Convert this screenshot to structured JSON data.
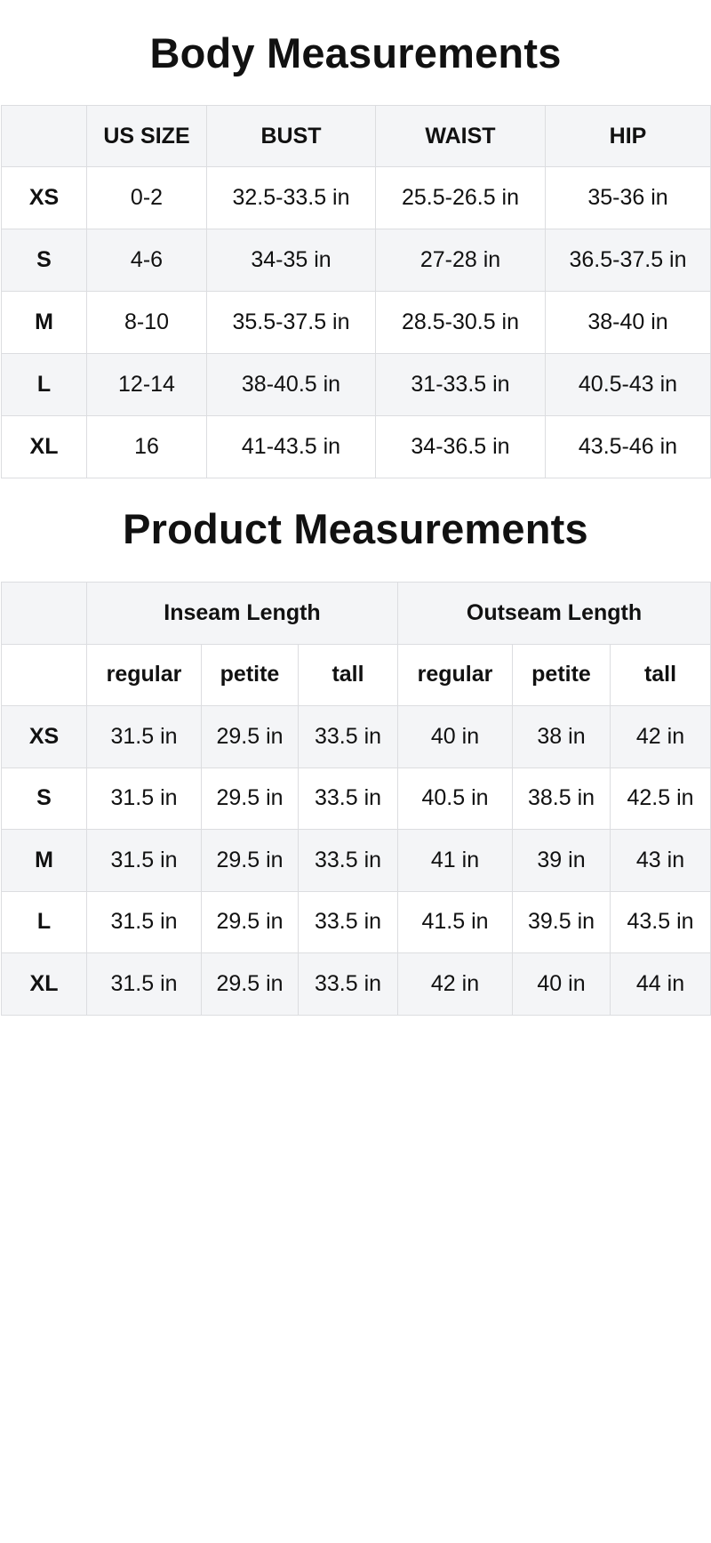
{
  "body_measurements": {
    "title": "Body Measurements",
    "headers": [
      "",
      "US SIZE",
      "BUST",
      "WAIST",
      "HIP"
    ],
    "rows": [
      [
        "XS",
        "0-2",
        "32.5-33.5 in",
        "25.5-26.5 in",
        "35-36 in"
      ],
      [
        "S",
        "4-6",
        "34-35 in",
        "27-28 in",
        "36.5-37.5 in"
      ],
      [
        "M",
        "8-10",
        "35.5-37.5 in",
        "28.5-30.5 in",
        "38-40 in"
      ],
      [
        "L",
        "12-14",
        "38-40.5 in",
        "31-33.5 in",
        "40.5-43 in"
      ],
      [
        "XL",
        "16",
        "41-43.5 in",
        "34-36.5 in",
        "43.5-46 in"
      ]
    ]
  },
  "product_measurements": {
    "title": "Product Measurements",
    "groups": [
      "Inseam Length",
      "Outseam Length"
    ],
    "subheaders": [
      "regular",
      "petite",
      "tall",
      "regular",
      "petite",
      "tall"
    ],
    "rows": [
      [
        "XS",
        "31.5 in",
        "29.5 in",
        "33.5 in",
        "40 in",
        "38 in",
        "42 in"
      ],
      [
        "S",
        "31.5 in",
        "29.5 in",
        "33.5 in",
        "40.5 in",
        "38.5 in",
        "42.5 in"
      ],
      [
        "M",
        "31.5 in",
        "29.5 in",
        "33.5 in",
        "41 in",
        "39 in",
        "43 in"
      ],
      [
        "L",
        "31.5 in",
        "29.5 in",
        "33.5 in",
        "41.5 in",
        "39.5 in",
        "43.5 in"
      ],
      [
        "XL",
        "31.5 in",
        "29.5 in",
        "33.5 in",
        "42 in",
        "40 in",
        "44 in"
      ]
    ]
  },
  "colors": {
    "header_bg": "#f4f5f7",
    "border": "#dcdde0",
    "text": "#111111"
  }
}
